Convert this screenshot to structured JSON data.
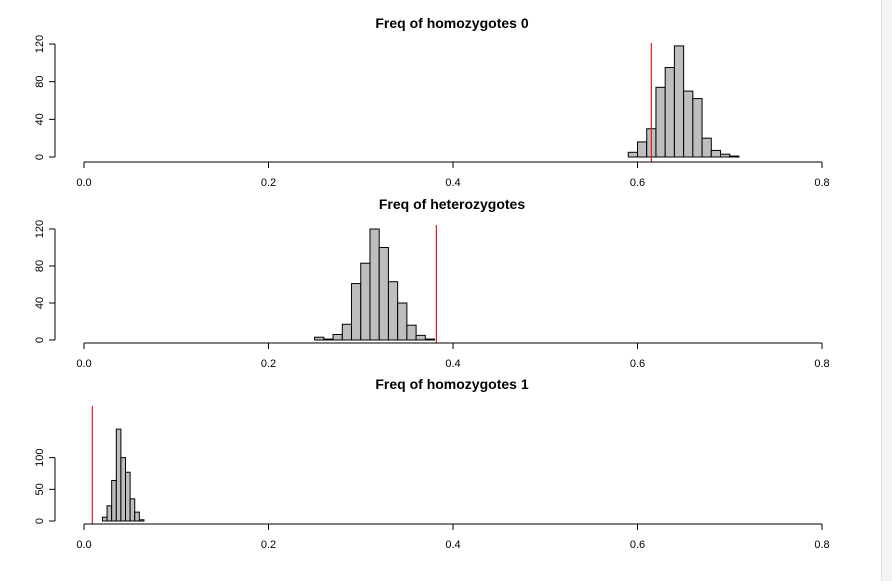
{
  "chart_data": [
    {
      "type": "histogram",
      "title": "Freq of homozygotes 0",
      "xlabel": "",
      "ylabel": "",
      "xlim": [
        0.0,
        0.8
      ],
      "ylim": [
        0,
        120
      ],
      "x_ticks": [
        "0.0",
        "0.2",
        "0.4",
        "0.6",
        "0.8"
      ],
      "y_ticks": [
        "0",
        "40",
        "80",
        "120"
      ],
      "bin_width": 0.01,
      "bins": [
        {
          "x0": 0.59,
          "x1": 0.6,
          "count": 5
        },
        {
          "x0": 0.6,
          "x1": 0.61,
          "count": 16
        },
        {
          "x0": 0.61,
          "x1": 0.62,
          "count": 30
        },
        {
          "x0": 0.62,
          "x1": 0.63,
          "count": 74
        },
        {
          "x0": 0.63,
          "x1": 0.64,
          "count": 95
        },
        {
          "x0": 0.64,
          "x1": 0.65,
          "count": 118
        },
        {
          "x0": 0.65,
          "x1": 0.66,
          "count": 70
        },
        {
          "x0": 0.66,
          "x1": 0.67,
          "count": 62
        },
        {
          "x0": 0.67,
          "x1": 0.68,
          "count": 20
        },
        {
          "x0": 0.68,
          "x1": 0.69,
          "count": 7
        },
        {
          "x0": 0.69,
          "x1": 0.7,
          "count": 3
        },
        {
          "x0": 0.7,
          "x1": 0.71,
          "count": 1
        }
      ],
      "ref_line": 0.615,
      "ref_color": "#e41a1c"
    },
    {
      "type": "histogram",
      "title": "Freq of heterozygotes",
      "xlabel": "",
      "ylabel": "",
      "xlim": [
        0.0,
        0.8
      ],
      "ylim": [
        0,
        120
      ],
      "x_ticks": [
        "0.0",
        "0.2",
        "0.4",
        "0.6",
        "0.8"
      ],
      "y_ticks": [
        "0",
        "40",
        "80",
        "120"
      ],
      "bin_width": 0.01,
      "bins": [
        {
          "x0": 0.25,
          "x1": 0.26,
          "count": 3
        },
        {
          "x0": 0.26,
          "x1": 0.27,
          "count": 1
        },
        {
          "x0": 0.27,
          "x1": 0.28,
          "count": 6
        },
        {
          "x0": 0.28,
          "x1": 0.29,
          "count": 17
        },
        {
          "x0": 0.29,
          "x1": 0.3,
          "count": 61
        },
        {
          "x0": 0.3,
          "x1": 0.31,
          "count": 83
        },
        {
          "x0": 0.31,
          "x1": 0.32,
          "count": 120
        },
        {
          "x0": 0.32,
          "x1": 0.33,
          "count": 100
        },
        {
          "x0": 0.33,
          "x1": 0.34,
          "count": 63
        },
        {
          "x0": 0.34,
          "x1": 0.35,
          "count": 40
        },
        {
          "x0": 0.35,
          "x1": 0.36,
          "count": 16
        },
        {
          "x0": 0.36,
          "x1": 0.37,
          "count": 5
        },
        {
          "x0": 0.37,
          "x1": 0.38,
          "count": 1
        }
      ],
      "ref_line": 0.382,
      "ref_color": "#e41a1c"
    },
    {
      "type": "histogram",
      "title": "Freq of homozygotes 1",
      "xlabel": "",
      "ylabel": "",
      "xlim": [
        0.0,
        0.8
      ],
      "ylim": [
        0,
        150
      ],
      "x_ticks": [
        "0.0",
        "0.2",
        "0.4",
        "0.6",
        "0.8"
      ],
      "y_ticks": [
        "0",
        "50",
        "100"
      ],
      "bin_width": 0.005,
      "bins": [
        {
          "x0": 0.02,
          "x1": 0.025,
          "count": 6
        },
        {
          "x0": 0.025,
          "x1": 0.03,
          "count": 24
        },
        {
          "x0": 0.03,
          "x1": 0.035,
          "count": 64
        },
        {
          "x0": 0.035,
          "x1": 0.04,
          "count": 145
        },
        {
          "x0": 0.04,
          "x1": 0.045,
          "count": 100
        },
        {
          "x0": 0.045,
          "x1": 0.05,
          "count": 77
        },
        {
          "x0": 0.05,
          "x1": 0.055,
          "count": 35
        },
        {
          "x0": 0.055,
          "x1": 0.06,
          "count": 14
        },
        {
          "x0": 0.06,
          "x1": 0.065,
          "count": 2
        }
      ],
      "ref_line": 0.009,
      "ref_color": "#e41a1c"
    }
  ]
}
